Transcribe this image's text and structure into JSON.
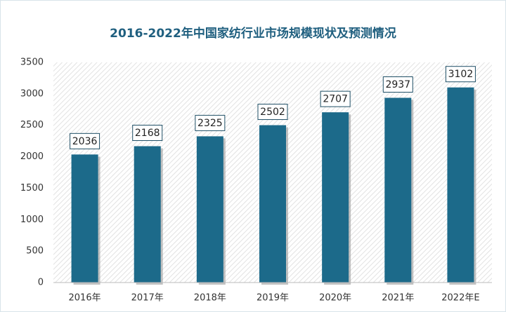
{
  "chart_data": {
    "type": "bar",
    "title": "2016-2022年中国家纺行业市场规模现状及预测情况",
    "categories": [
      "2016年",
      "2017年",
      "2018年",
      "2019年",
      "2020年",
      "2021年",
      "2022年E"
    ],
    "values": [
      2036,
      2168,
      2325,
      2502,
      2707,
      2937,
      3102
    ],
    "color": "#1c6a8a",
    "ylim": [
      0,
      3500
    ],
    "yticks": [
      0,
      500,
      1000,
      1500,
      2000,
      2500,
      3000,
      3500
    ],
    "grid": false
  }
}
